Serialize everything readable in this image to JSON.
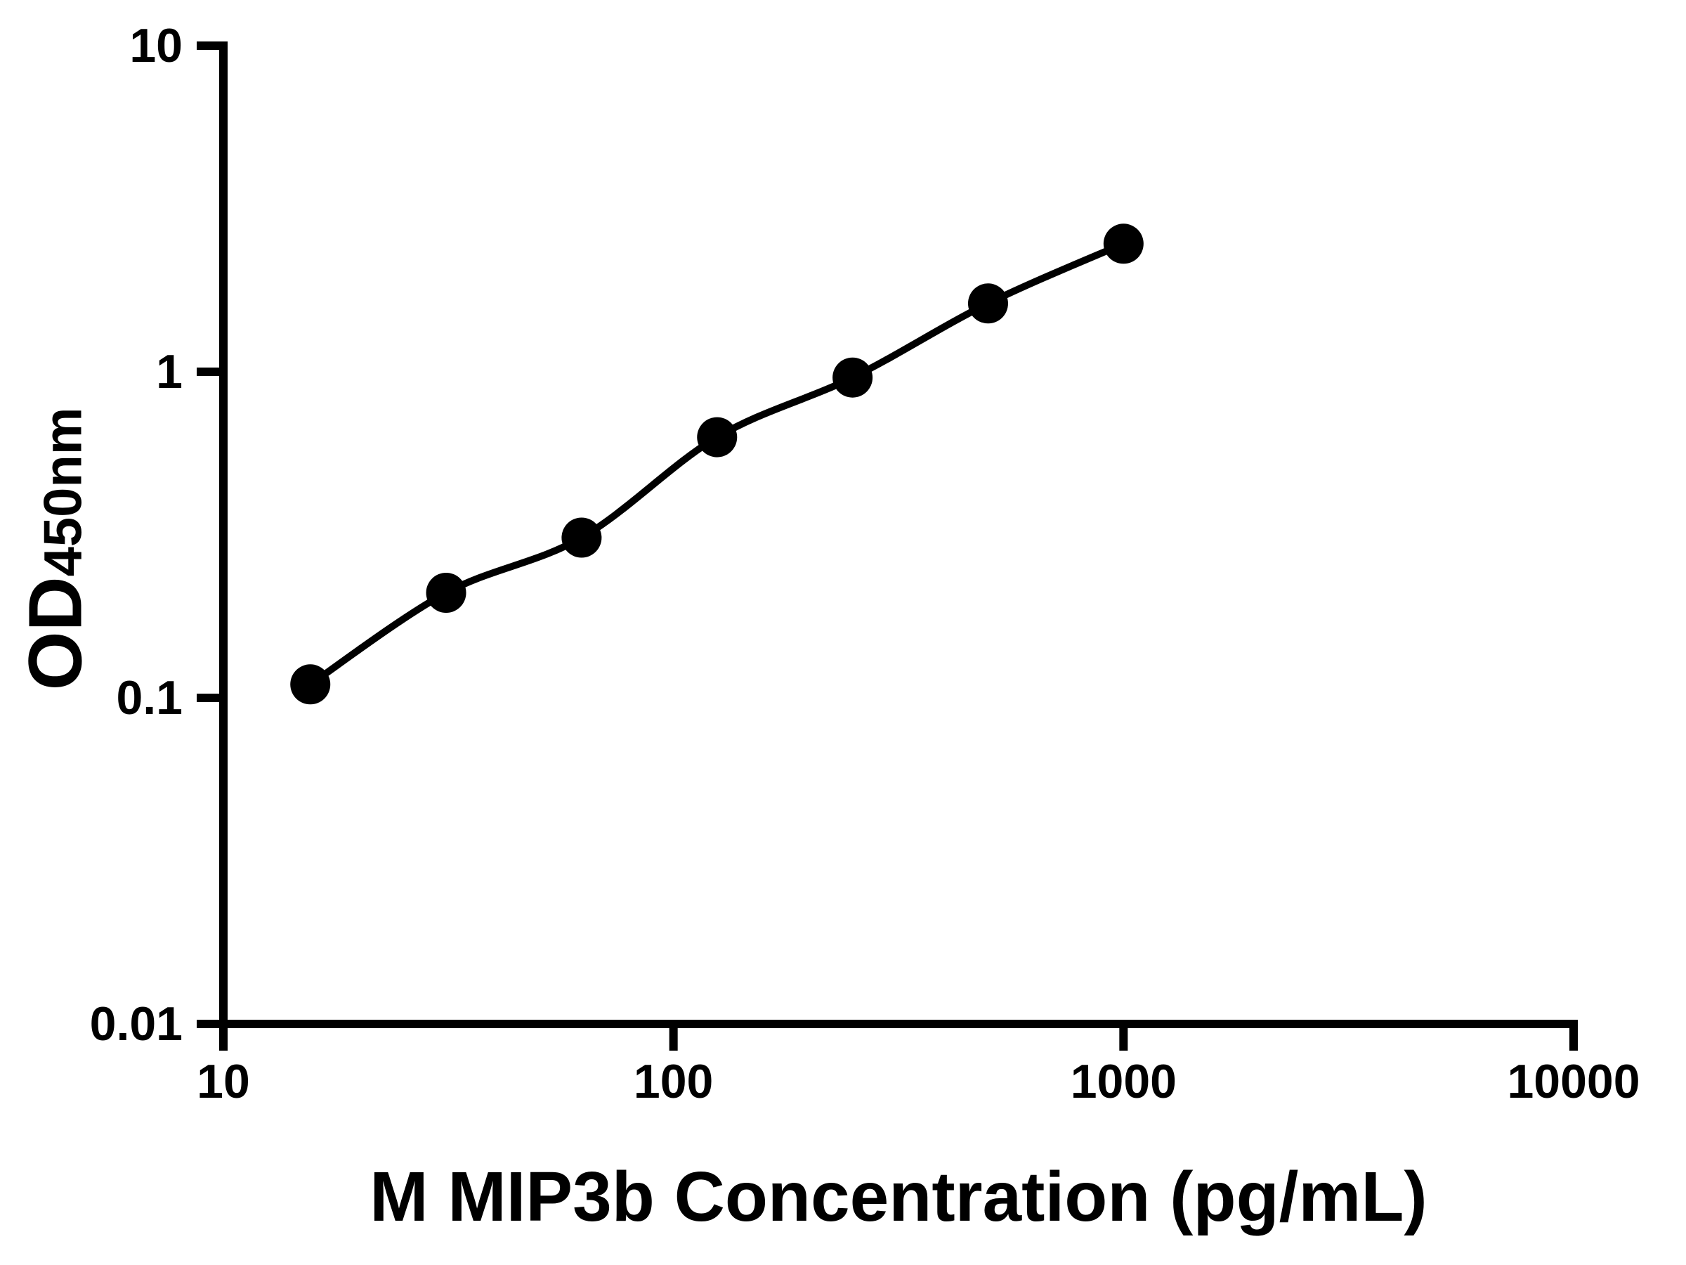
{
  "figure": {
    "background": "#ffffff",
    "foreground": "#000000"
  },
  "chart_data": {
    "type": "line",
    "title": "",
    "x": [
      15.6,
      31.25,
      62.5,
      125,
      250,
      500,
      1000
    ],
    "y": [
      0.11,
      0.21,
      0.31,
      0.63,
      0.96,
      1.62,
      2.47
    ],
    "xlabel": "M MIP3b Concentration (pg/mL)",
    "ylabel_main": "OD",
    "ylabel_sub": "450nm",
    "x_scale": "log",
    "y_scale": "log",
    "xlim": [
      10,
      10000
    ],
    "ylim": [
      0.01,
      10
    ],
    "x_ticks": {
      "values": [
        10,
        100,
        1000,
        10000
      ],
      "labels": [
        "10",
        "100",
        "1000",
        "10000"
      ]
    },
    "y_ticks": {
      "values": [
        0.01,
        0.1,
        1,
        10
      ],
      "labels": [
        "0.01",
        "0.1",
        "1",
        "10"
      ]
    },
    "grid": false,
    "legend": "none",
    "marker": "filled-circle",
    "line_style": "smooth-fit-curve"
  }
}
